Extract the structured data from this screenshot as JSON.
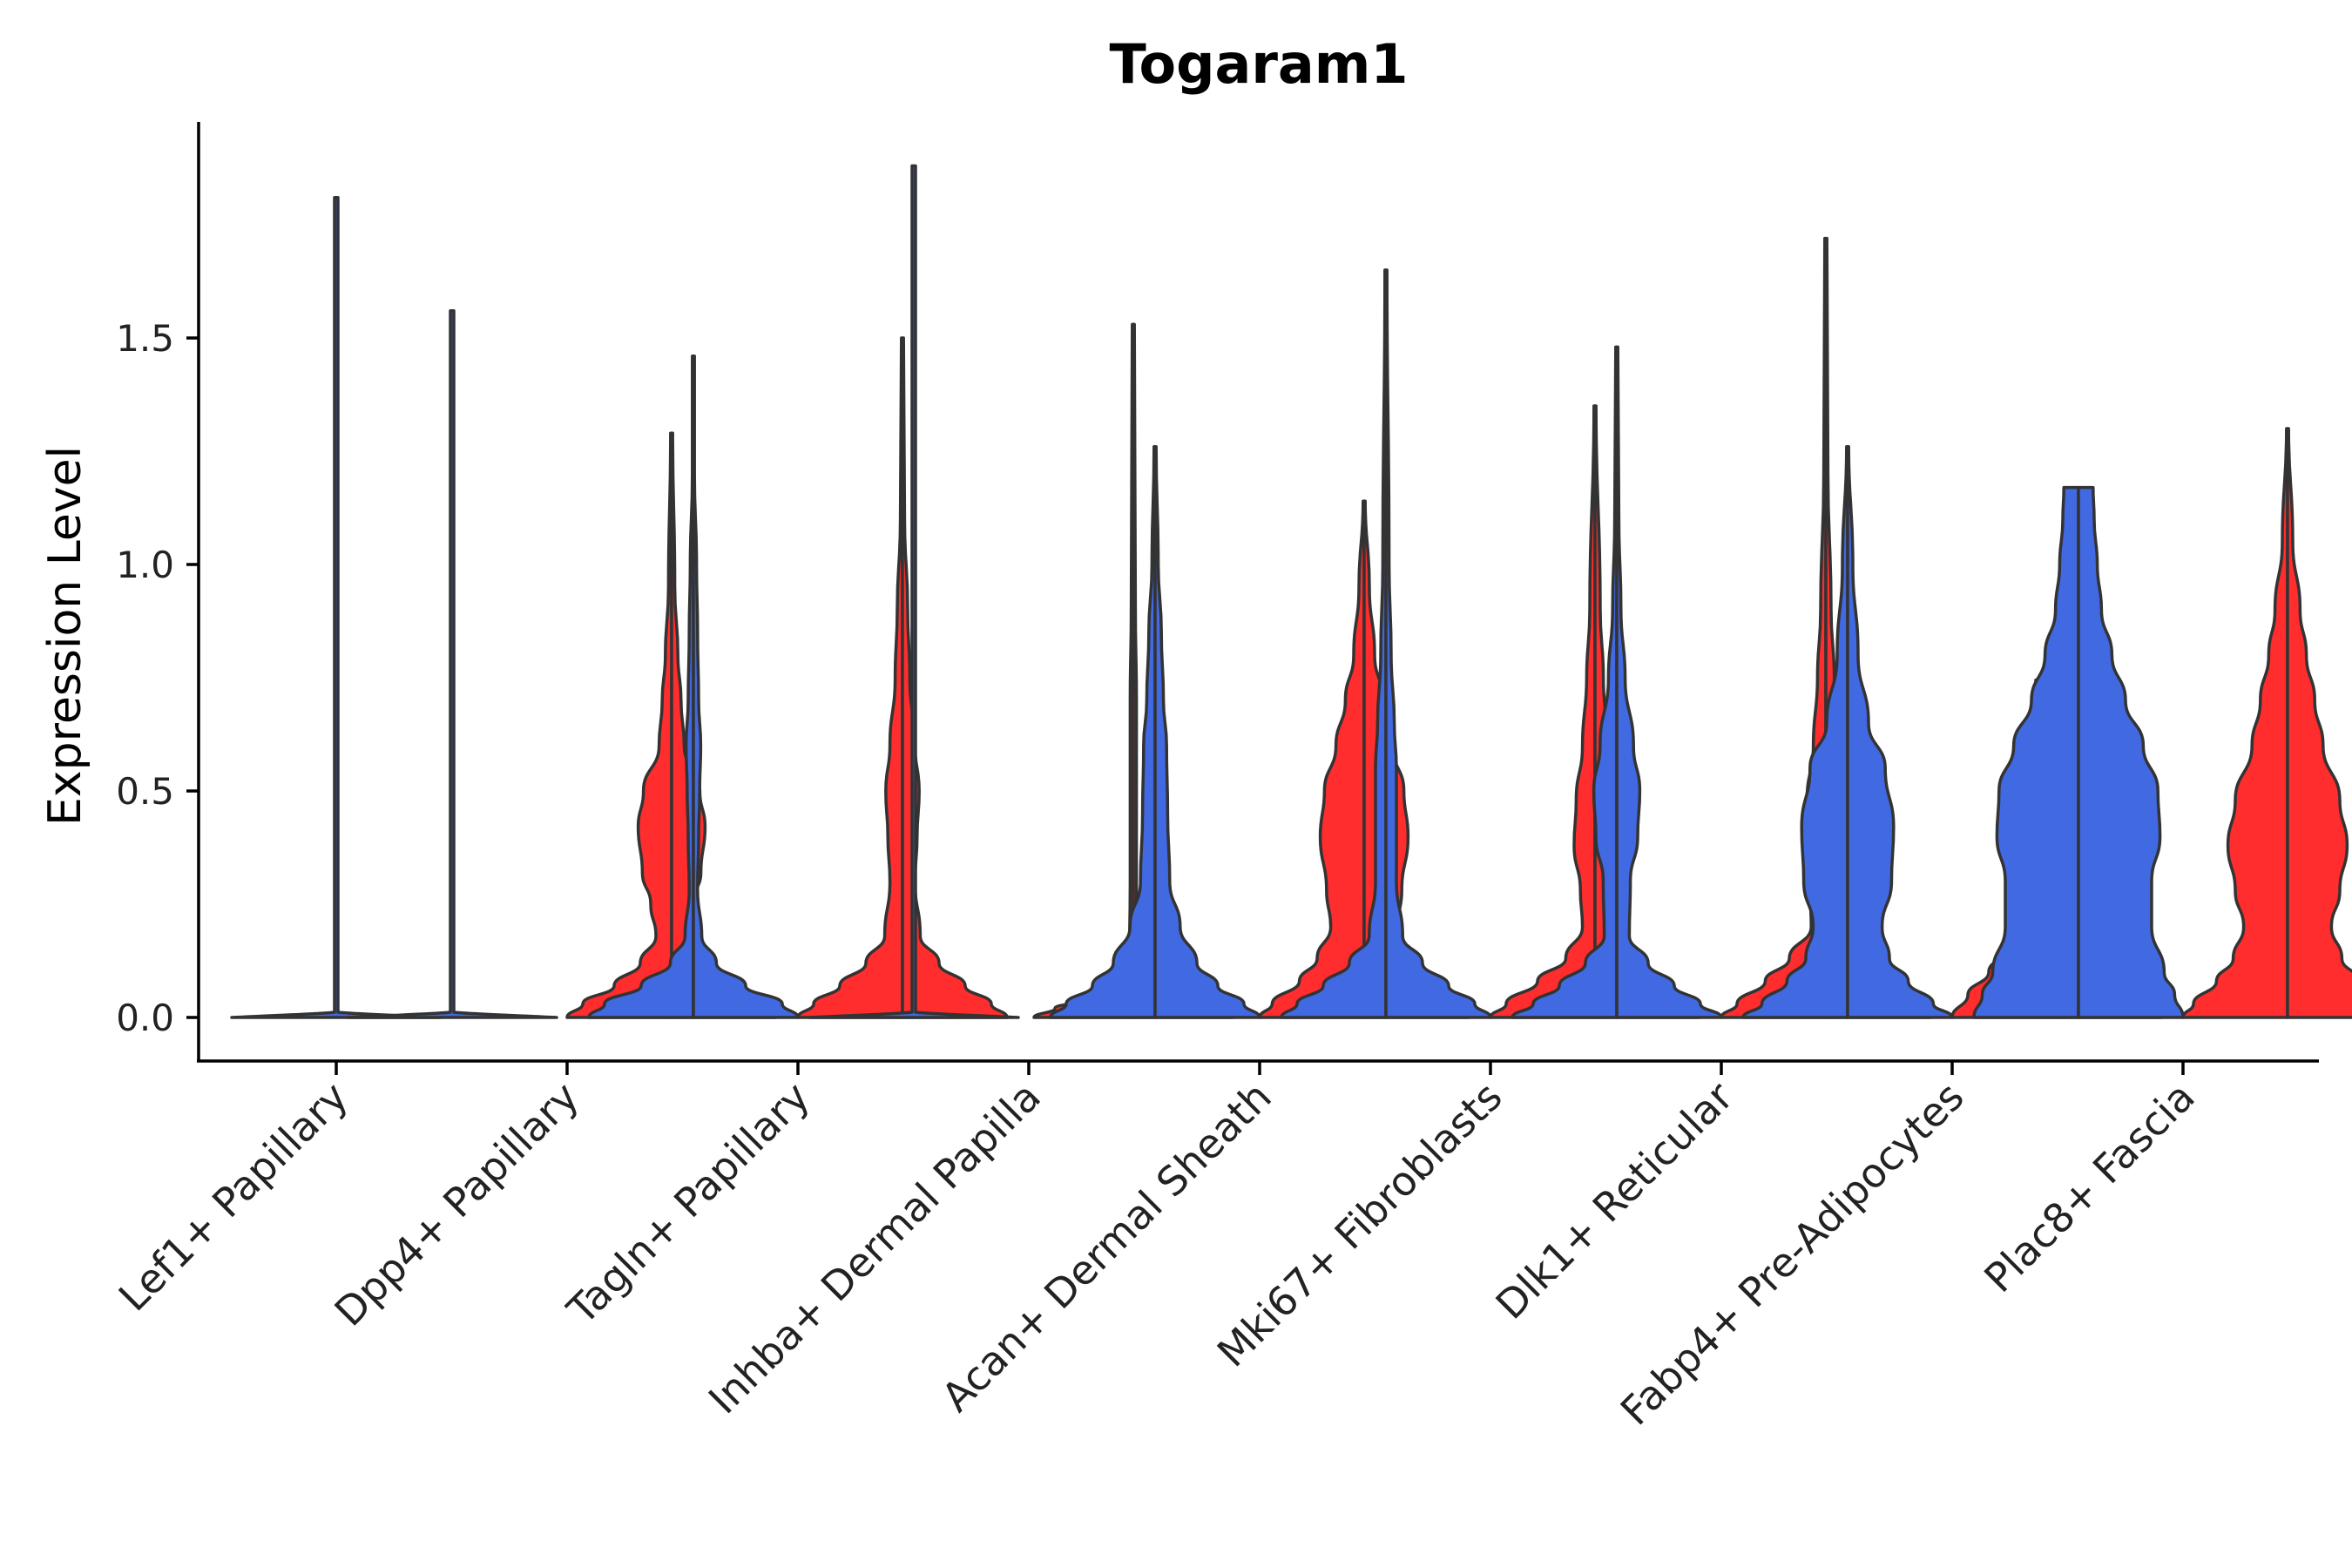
{
  "chart_data": {
    "type": "violin",
    "title": "Togaram1",
    "xlabel": "",
    "ylabel": "Expression Level",
    "ylim": [
      -0.1,
      1.95
    ],
    "yticks": [
      0.0,
      0.5,
      1.0,
      1.5
    ],
    "ytick_labels": [
      "0.0",
      "0.5",
      "1.0",
      "1.5"
    ],
    "grid": false,
    "legend": "none",
    "colors": {
      "blue": "#4169E1",
      "red": "#FF2D2D",
      "outline": "#333333"
    },
    "categories": [
      "Lef1+ Papillary",
      "Dpp4+ Papillary",
      "Tagln+ Papillary",
      "Inhba+ Dermal Papilla",
      "Acan+ Dermal Sheath",
      "Mki67+ Fibroblasts",
      "Dlk1+ Reticular",
      "Fabp4+ Pre-Adipocytes",
      "Plac8+ Fascia"
    ],
    "series": [
      {
        "name": "blue",
        "color": "#4169E1",
        "violins": [
          {
            "category": "Lef1+ Papillary",
            "max": 1.81,
            "profile": [
              [
                0,
                1
              ],
              [
                0.01,
                0.3
              ],
              [
                0.02,
                0.01
              ],
              [
                1.81,
                0.01
              ]
            ]
          },
          {
            "category": "Dpp4+ Papillary",
            "max": 1.56,
            "profile": [
              [
                0,
                1
              ],
              [
                0.01,
                0.3
              ],
              [
                0.02,
                0.01
              ],
              [
                1.56,
                0.01
              ]
            ]
          },
          {
            "category": "Tagln+ Papillary",
            "max": 1.46,
            "profile": [
              [
                0,
                1
              ],
              [
                0.03,
                0.85
              ],
              [
                0.07,
                0.5
              ],
              [
                0.12,
                0.22
              ],
              [
                0.18,
                0.08
              ],
              [
                0.28,
                0.04
              ],
              [
                0.4,
                0.05
              ],
              [
                0.5,
                0.06
              ],
              [
                0.6,
                0.07
              ],
              [
                0.7,
                0.05
              ],
              [
                0.85,
                0.04
              ],
              [
                1.0,
                0.03
              ],
              [
                1.2,
                0.01
              ],
              [
                1.46,
                0.01
              ]
            ]
          },
          {
            "category": "Inhba+ Dermal Papilla",
            "max": 1.88,
            "profile": [
              [
                0,
                1
              ],
              [
                0.01,
                0.3
              ],
              [
                0.02,
                0.01
              ],
              [
                1.88,
                0.01
              ]
            ]
          },
          {
            "category": "Acan+ Dermal Sheath",
            "max": 1.26,
            "profile": [
              [
                0,
                1
              ],
              [
                0.03,
                0.85
              ],
              [
                0.07,
                0.6
              ],
              [
                0.12,
                0.4
              ],
              [
                0.2,
                0.24
              ],
              [
                0.3,
                0.14
              ],
              [
                0.45,
                0.12
              ],
              [
                0.6,
                0.11
              ],
              [
                0.7,
                0.08
              ],
              [
                0.85,
                0.06
              ],
              [
                1.0,
                0.03
              ],
              [
                1.26,
                0.01
              ]
            ]
          },
          {
            "category": "Mki67+ Fibroblasts",
            "max": 1.65,
            "profile": [
              [
                0,
                1
              ],
              [
                0.03,
                0.85
              ],
              [
                0.07,
                0.6
              ],
              [
                0.12,
                0.35
              ],
              [
                0.18,
                0.16
              ],
              [
                0.3,
                0.1
              ],
              [
                0.45,
                0.1
              ],
              [
                0.55,
                0.1
              ],
              [
                0.65,
                0.08
              ],
              [
                0.8,
                0.05
              ],
              [
                1.0,
                0.03
              ],
              [
                1.65,
                0.01
              ]
            ]
          },
          {
            "category": "Dlk1+ Reticular",
            "max": 1.48,
            "profile": [
              [
                0,
                1
              ],
              [
                0.03,
                0.8
              ],
              [
                0.07,
                0.55
              ],
              [
                0.12,
                0.3
              ],
              [
                0.18,
                0.12
              ],
              [
                0.3,
                0.13
              ],
              [
                0.4,
                0.2
              ],
              [
                0.5,
                0.22
              ],
              [
                0.6,
                0.16
              ],
              [
                0.75,
                0.08
              ],
              [
                0.9,
                0.04
              ],
              [
                1.1,
                0.02
              ],
              [
                1.48,
                0.01
              ]
            ]
          },
          {
            "category": "Fabp4+ Pre-Adipocytes",
            "max": 1.26,
            "profile": [
              [
                0,
                1
              ],
              [
                0.03,
                0.82
              ],
              [
                0.08,
                0.58
              ],
              [
                0.13,
                0.4
              ],
              [
                0.2,
                0.33
              ],
              [
                0.3,
                0.42
              ],
              [
                0.42,
                0.44
              ],
              [
                0.55,
                0.36
              ],
              [
                0.65,
                0.2
              ],
              [
                0.8,
                0.1
              ],
              [
                1.0,
                0.05
              ],
              [
                1.26,
                0.01
              ]
            ]
          },
          {
            "category": "Plac8+ Fascia",
            "max": 1.17,
            "profile": [
              [
                0,
                1
              ],
              [
                0.05,
                0.92
              ],
              [
                0.1,
                0.82
              ],
              [
                0.2,
                0.7
              ],
              [
                0.3,
                0.7
              ],
              [
                0.4,
                0.78
              ],
              [
                0.5,
                0.76
              ],
              [
                0.6,
                0.62
              ],
              [
                0.7,
                0.45
              ],
              [
                0.8,
                0.32
              ],
              [
                0.9,
                0.22
              ],
              [
                1.0,
                0.18
              ],
              [
                1.1,
                0.15
              ],
              [
                1.17,
                0.14
              ]
            ]
          }
        ]
      },
      {
        "name": "red",
        "color": "#FF2D2D",
        "violins": [
          {
            "category": "Dpp4+ Papillary",
            "max": 1.29,
            "profile": [
              [
                0,
                1
              ],
              [
                0.03,
                0.85
              ],
              [
                0.07,
                0.55
              ],
              [
                0.12,
                0.3
              ],
              [
                0.18,
                0.15
              ],
              [
                0.25,
                0.2
              ],
              [
                0.32,
                0.28
              ],
              [
                0.42,
                0.32
              ],
              [
                0.5,
                0.27
              ],
              [
                0.6,
                0.12
              ],
              [
                0.7,
                0.09
              ],
              [
                0.8,
                0.06
              ],
              [
                0.95,
                0.03
              ],
              [
                1.29,
                0.01
              ]
            ]
          },
          {
            "category": "Tagln+ Papillary",
            "max": 1.5,
            "profile": [
              [
                0,
                1
              ],
              [
                0.03,
                0.85
              ],
              [
                0.07,
                0.6
              ],
              [
                0.12,
                0.35
              ],
              [
                0.18,
                0.17
              ],
              [
                0.3,
                0.12
              ],
              [
                0.4,
                0.14
              ],
              [
                0.5,
                0.16
              ],
              [
                0.6,
                0.12
              ],
              [
                0.75,
                0.07
              ],
              [
                0.9,
                0.05
              ],
              [
                1.1,
                0.02
              ],
              [
                1.5,
                0.01
              ]
            ]
          },
          {
            "category": "Inhba+ Dermal Papilla",
            "max": 1.53,
            "profile": [
              [
                0,
                0.95
              ],
              [
                0.02,
                0.75
              ],
              [
                0.04,
                0.45
              ],
              [
                0.06,
                0.15
              ],
              [
                0.08,
                0.04
              ],
              [
                0.3,
                0.03
              ],
              [
                0.5,
                0.03
              ],
              [
                0.7,
                0.03
              ],
              [
                0.9,
                0.02
              ],
              [
                1.53,
                0.01
              ]
            ]
          },
          {
            "category": "Acan+ Dermal Sheath",
            "max": 1.14,
            "profile": [
              [
                0,
                1
              ],
              [
                0.03,
                0.88
              ],
              [
                0.08,
                0.62
              ],
              [
                0.13,
                0.45
              ],
              [
                0.2,
                0.32
              ],
              [
                0.28,
                0.36
              ],
              [
                0.4,
                0.42
              ],
              [
                0.5,
                0.38
              ],
              [
                0.6,
                0.27
              ],
              [
                0.7,
                0.18
              ],
              [
                0.8,
                0.1
              ],
              [
                0.95,
                0.05
              ],
              [
                1.14,
                0.01
              ]
            ]
          },
          {
            "category": "Mki67+ Fibroblasts",
            "max": 1.35,
            "profile": [
              [
                0,
                1
              ],
              [
                0.03,
                0.85
              ],
              [
                0.08,
                0.55
              ],
              [
                0.13,
                0.28
              ],
              [
                0.2,
                0.12
              ],
              [
                0.28,
                0.14
              ],
              [
                0.38,
                0.2
              ],
              [
                0.48,
                0.18
              ],
              [
                0.6,
                0.12
              ],
              [
                0.75,
                0.08
              ],
              [
                0.9,
                0.05
              ],
              [
                1.35,
                0.01
              ]
            ]
          },
          {
            "category": "Dlk1+ Reticular",
            "max": 1.72,
            "profile": [
              [
                0,
                1
              ],
              [
                0.03,
                0.85
              ],
              [
                0.08,
                0.58
              ],
              [
                0.13,
                0.35
              ],
              [
                0.2,
                0.14
              ],
              [
                0.28,
                0.15
              ],
              [
                0.38,
                0.2
              ],
              [
                0.48,
                0.18
              ],
              [
                0.6,
                0.12
              ],
              [
                0.75,
                0.08
              ],
              [
                0.9,
                0.05
              ],
              [
                1.2,
                0.02
              ],
              [
                1.72,
                0.01
              ]
            ]
          },
          {
            "category": "Fabp4+ Pre-Adipocytes",
            "max": 0.745,
            "profile": [
              [
                0,
                1
              ],
              [
                0.05,
                0.85
              ],
              [
                0.1,
                0.65
              ],
              [
                0.15,
                0.5
              ],
              [
                0.2,
                0.43
              ],
              [
                0.3,
                0.37
              ],
              [
                0.4,
                0.3
              ],
              [
                0.5,
                0.26
              ],
              [
                0.6,
                0.22
              ],
              [
                0.7,
                0.2
              ],
              [
                0.745,
                0.2
              ]
            ]
          },
          {
            "category": "Plac8+ Fascia",
            "max": 1.3,
            "profile": [
              [
                0,
                1
              ],
              [
                0.03,
                0.9
              ],
              [
                0.08,
                0.68
              ],
              [
                0.13,
                0.52
              ],
              [
                0.2,
                0.42
              ],
              [
                0.28,
                0.5
              ],
              [
                0.38,
                0.57
              ],
              [
                0.48,
                0.5
              ],
              [
                0.6,
                0.34
              ],
              [
                0.7,
                0.26
              ],
              [
                0.8,
                0.18
              ],
              [
                0.9,
                0.12
              ],
              [
                1.05,
                0.05
              ],
              [
                1.3,
                0.01
              ]
            ]
          }
        ]
      }
    ]
  }
}
